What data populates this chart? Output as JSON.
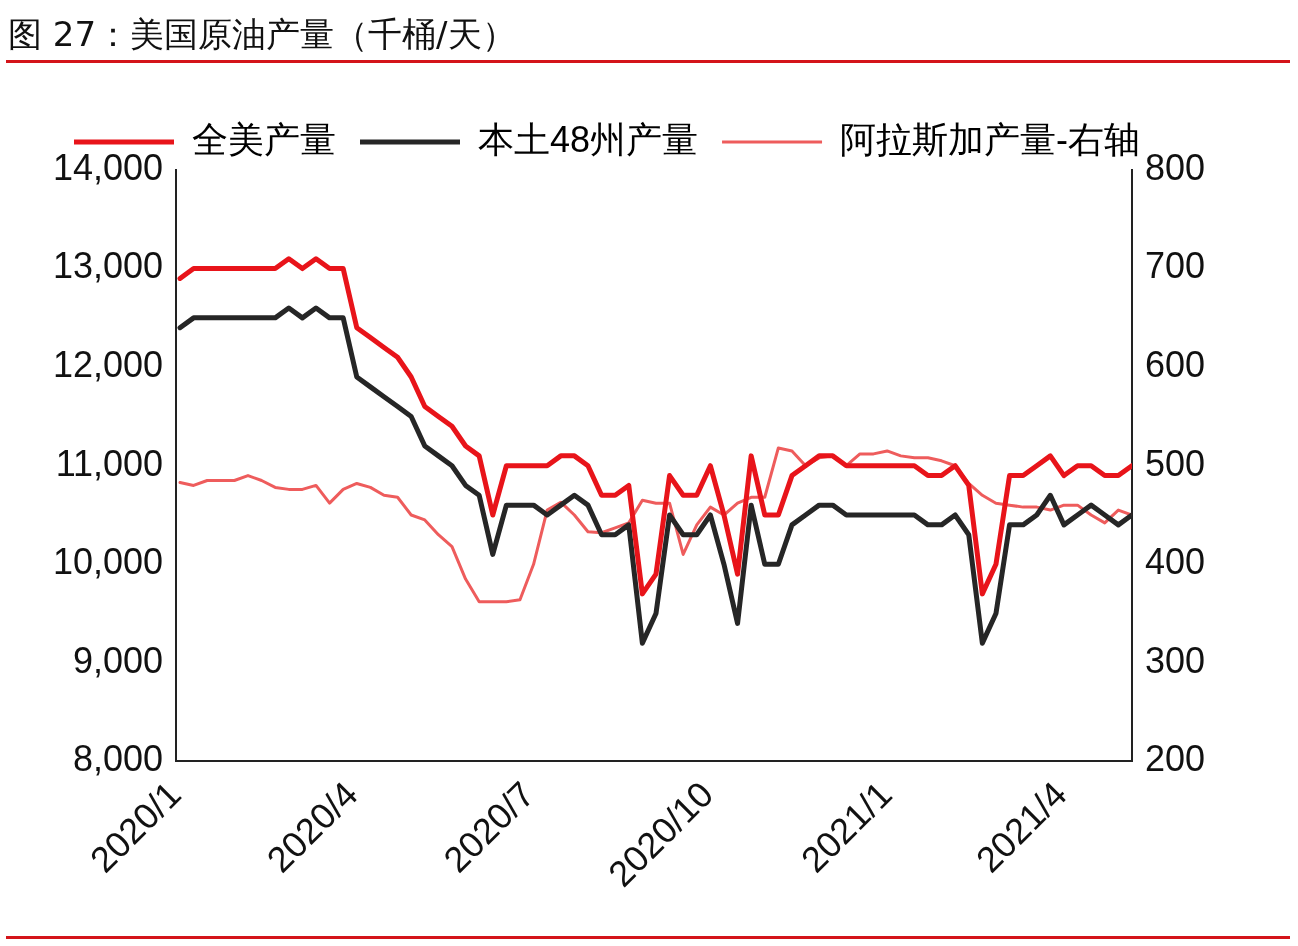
{
  "chart_data": {
    "type": "line",
    "title": "图 27：美国原油产量（千桶/天）",
    "x": [
      "2020-01-03",
      "2020-01-10",
      "2020-01-17",
      "2020-01-24",
      "2020-01-31",
      "2020-02-07",
      "2020-02-14",
      "2020-02-21",
      "2020-02-28",
      "2020-03-06",
      "2020-03-13",
      "2020-03-20",
      "2020-03-27",
      "2020-04-03",
      "2020-04-10",
      "2020-04-17",
      "2020-04-24",
      "2020-05-01",
      "2020-05-08",
      "2020-05-15",
      "2020-05-22",
      "2020-05-29",
      "2020-06-05",
      "2020-06-12",
      "2020-06-19",
      "2020-06-26",
      "2020-07-03",
      "2020-07-10",
      "2020-07-17",
      "2020-07-24",
      "2020-07-31",
      "2020-08-07",
      "2020-08-14",
      "2020-08-21",
      "2020-08-28",
      "2020-09-04",
      "2020-09-11",
      "2020-09-18",
      "2020-09-25",
      "2020-10-02",
      "2020-10-09",
      "2020-10-16",
      "2020-10-23",
      "2020-10-30",
      "2020-11-06",
      "2020-11-13",
      "2020-11-20",
      "2020-11-27",
      "2020-12-04",
      "2020-12-11",
      "2020-12-18",
      "2020-12-25",
      "2021-01-01",
      "2021-01-08",
      "2021-01-15",
      "2021-01-22",
      "2021-01-29",
      "2021-02-05",
      "2021-02-12",
      "2021-02-19",
      "2021-02-26",
      "2021-03-05",
      "2021-03-12",
      "2021-03-19",
      "2021-03-26",
      "2021-04-02",
      "2021-04-09",
      "2021-04-16",
      "2021-04-23",
      "2021-04-30",
      "2021-05-07"
    ],
    "series": [
      {
        "name": "全美产量",
        "color": "#e8141a",
        "values": [
          12900,
          13000,
          13000,
          13000,
          13000,
          13000,
          13000,
          13000,
          13100,
          13000,
          13100,
          13000,
          13000,
          12400,
          12300,
          12200,
          12100,
          11900,
          11600,
          11500,
          11400,
          11200,
          11100,
          10500,
          11000,
          11000,
          11000,
          11000,
          11100,
          11100,
          11000,
          10700,
          10700,
          10800,
          9700,
          9900,
          10900,
          10700,
          10700,
          11000,
          10500,
          9900,
          11100,
          10500,
          10500,
          10900,
          11000,
          11100,
          11100,
          11000,
          11000,
          11000,
          11000,
          11000,
          11000,
          10900,
          10900,
          11000,
          10800,
          9700,
          10000,
          10900,
          10900,
          11000,
          11100,
          10900,
          11000,
          11000,
          10900,
          10900,
          11000
        ]
      },
      {
        "name": "本土48州产量",
        "color": "#262626",
        "values": [
          12400,
          12500,
          12500,
          12500,
          12500,
          12500,
          12500,
          12500,
          12600,
          12500,
          12600,
          12500,
          12500,
          11900,
          11800,
          11700,
          11600,
          11500,
          11200,
          11100,
          11000,
          10800,
          10700,
          10100,
          10600,
          10600,
          10600,
          10500,
          10600,
          10700,
          10600,
          10300,
          10300,
          10400,
          9200,
          9500,
          10500,
          10300,
          10300,
          10500,
          10000,
          9400,
          10600,
          10000,
          10000,
          10400,
          10500,
          10600,
          10600,
          10500,
          10500,
          10500,
          10500,
          10500,
          10500,
          10400,
          10400,
          10500,
          10300,
          9200,
          9500,
          10400,
          10400,
          10500,
          10700,
          10400,
          10500,
          10600,
          10500,
          10400,
          10500
        ]
      },
      {
        "name": "阿拉斯加产量-右轴",
        "color": "#ee5c5c",
        "axis": "y2",
        "values": [
          483,
          480,
          485,
          485,
          485,
          490,
          485,
          478,
          476,
          476,
          480,
          462,
          476,
          482,
          478,
          470,
          468,
          450,
          445,
          430,
          418,
          385,
          362,
          362,
          362,
          364,
          400,
          455,
          463,
          450,
          433,
          432,
          437,
          442,
          465,
          462,
          462,
          410,
          440,
          458,
          450,
          462,
          468,
          468,
          518,
          515,
          500,
          508,
          510,
          500,
          512,
          512,
          515,
          510,
          508,
          508,
          505,
          500,
          482,
          470,
          462,
          460,
          458,
          458,
          455,
          460,
          460,
          450,
          442,
          455,
          450
        ]
      }
    ],
    "xlim": [
      "2020-01-01",
      "2021-05-07"
    ],
    "xticks": [
      {
        "value": "2020-01-01",
        "label": "2020/1"
      },
      {
        "value": "2020-04-01",
        "label": "2020/4"
      },
      {
        "value": "2020-07-01",
        "label": "2020/7"
      },
      {
        "value": "2020-10-01",
        "label": "2020/10"
      },
      {
        "value": "2021-01-01",
        "label": "2021/1"
      },
      {
        "value": "2021-04-01",
        "label": "2021/4"
      }
    ],
    "ylim": [
      8000,
      14000
    ],
    "yticks": [
      {
        "value": 8000,
        "label": "8,000"
      },
      {
        "value": 9000,
        "label": "9,000"
      },
      {
        "value": 10000,
        "label": "10,000"
      },
      {
        "value": 11000,
        "label": "11,000"
      },
      {
        "value": 12000,
        "label": "12,000"
      },
      {
        "value": 13000,
        "label": "13,000"
      },
      {
        "value": 14000,
        "label": "14,000"
      }
    ],
    "y2lim": [
      200,
      800
    ],
    "y2ticks": [
      200,
      300,
      400,
      500,
      600,
      700,
      800
    ],
    "legend": "top left",
    "marker": "none",
    "line_style": "solid"
  }
}
